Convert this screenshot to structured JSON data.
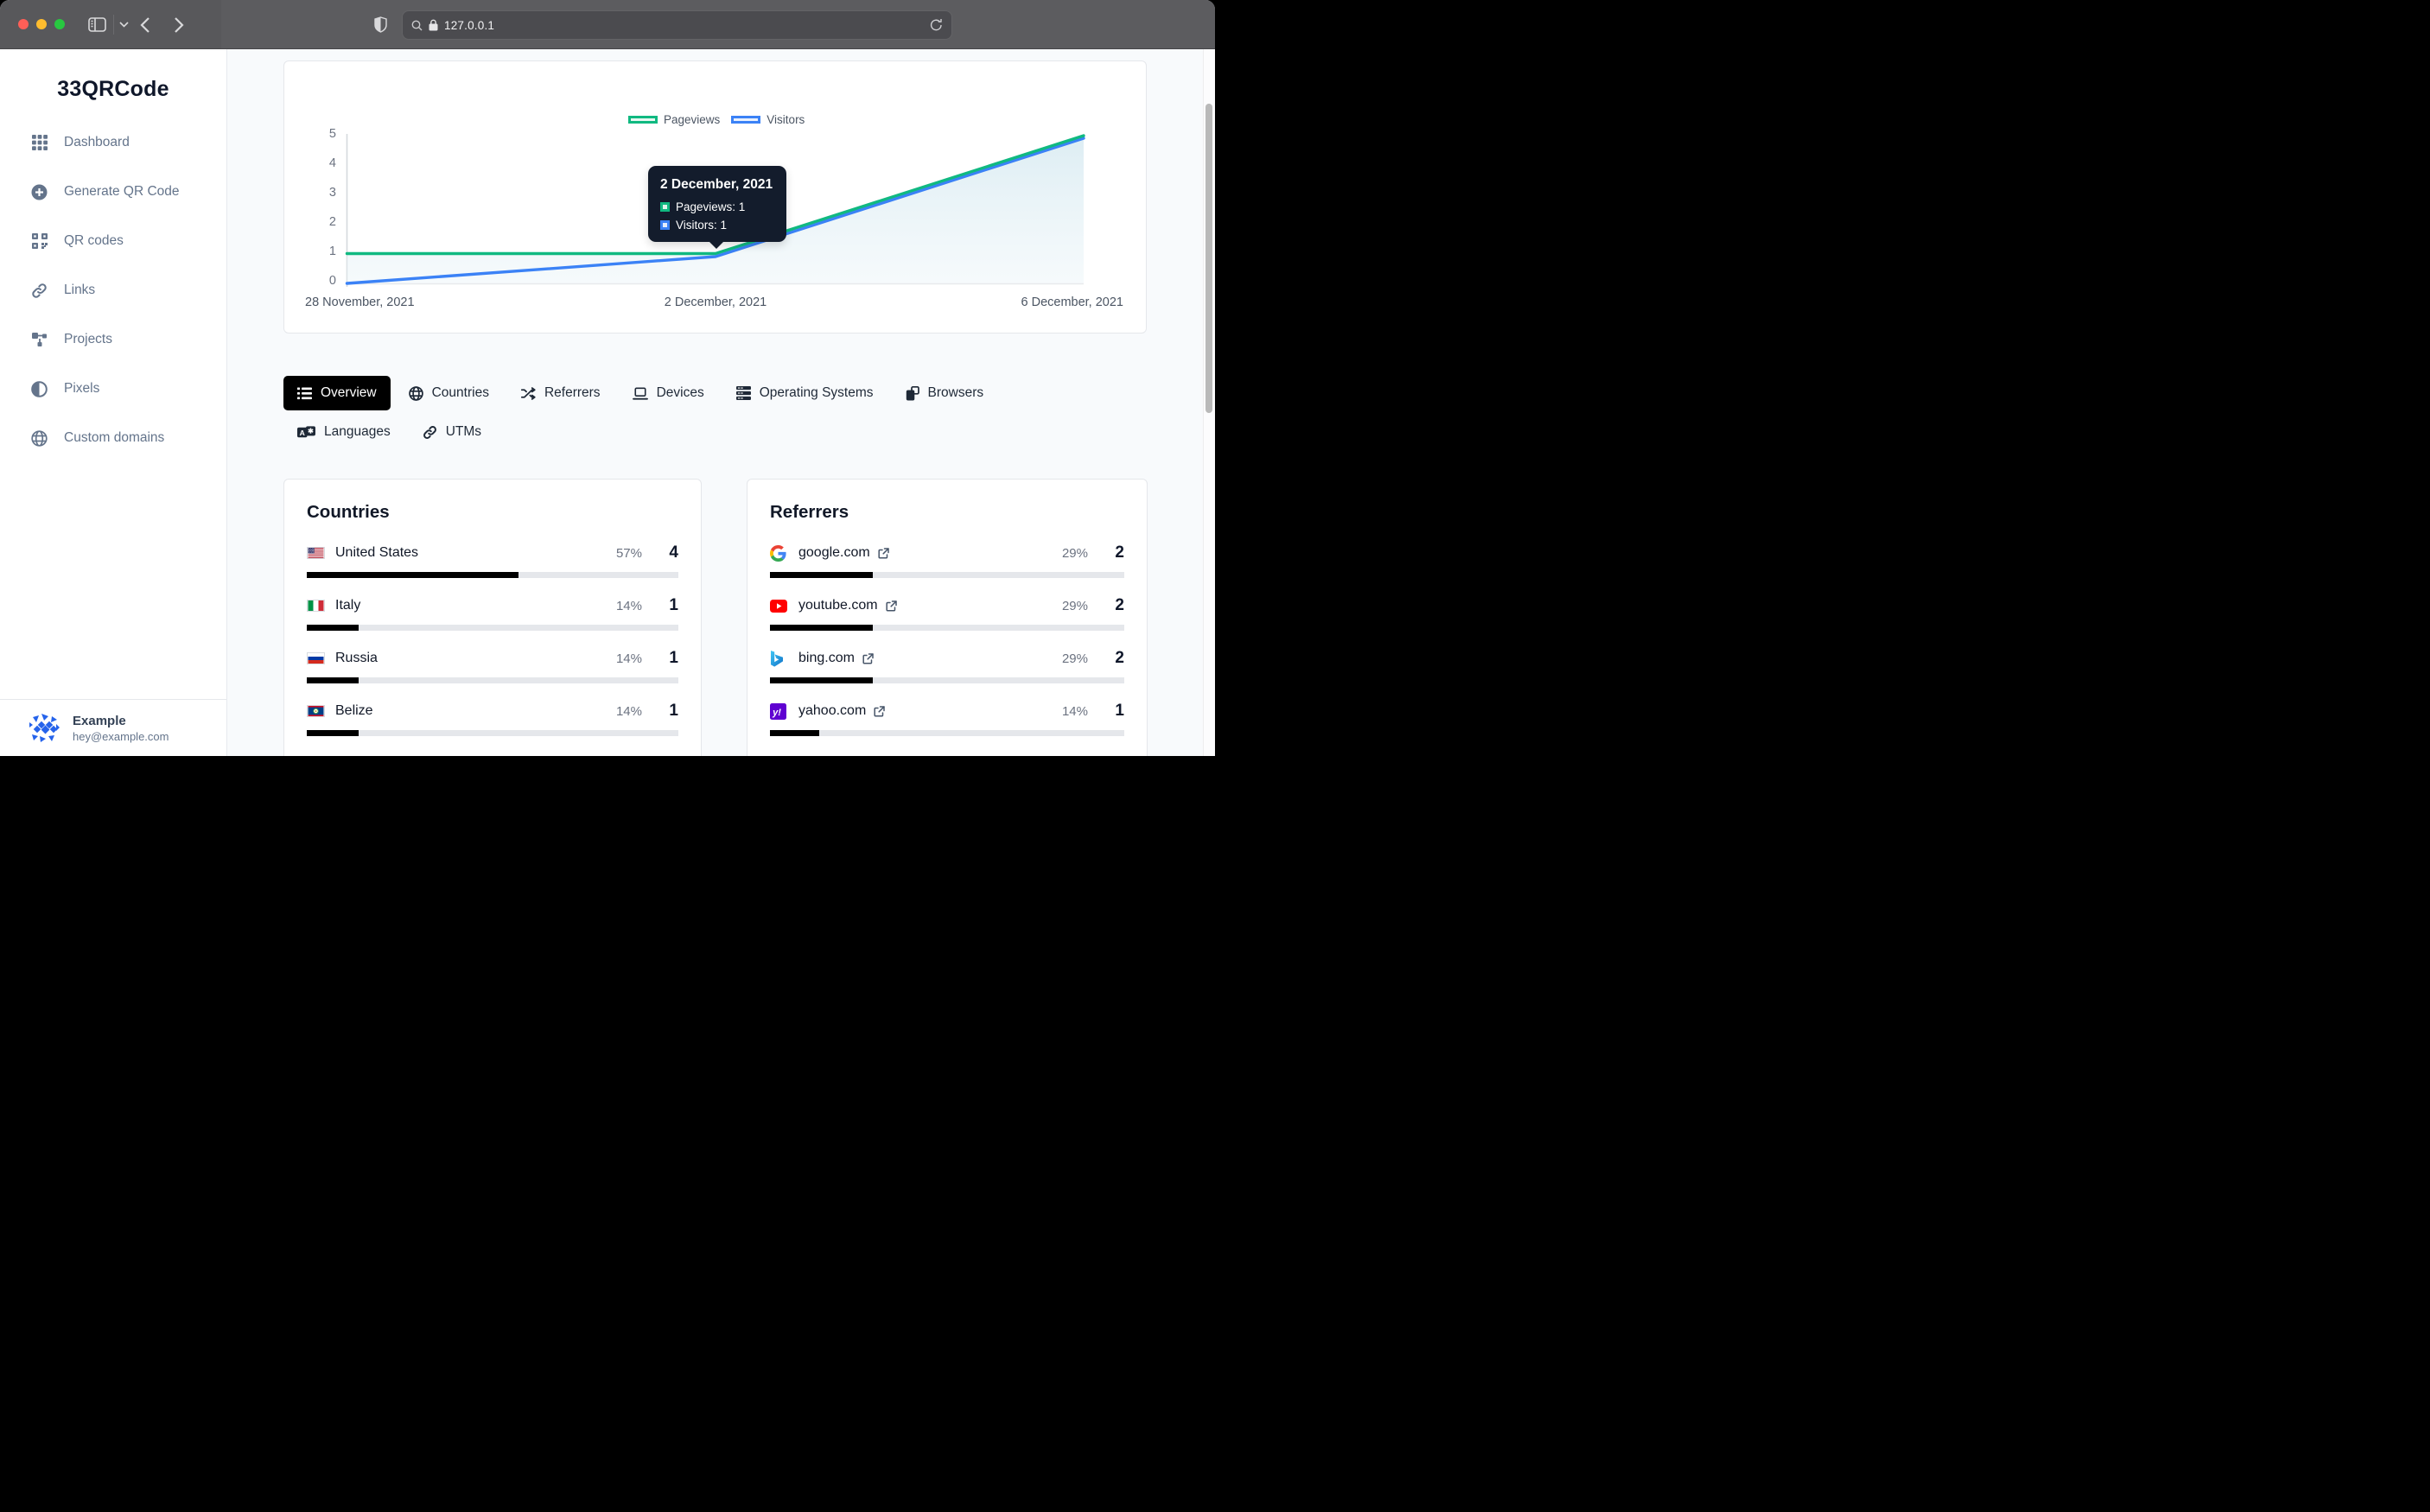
{
  "browser": {
    "url": "127.0.0.1"
  },
  "sidebar": {
    "brand": "33QRCode",
    "items": [
      {
        "label": "Dashboard",
        "icon": "grid-icon"
      },
      {
        "label": "Generate QR Code",
        "icon": "plus-circle-icon"
      },
      {
        "label": "QR codes",
        "icon": "qr-icon"
      },
      {
        "label": "Links",
        "icon": "link-icon"
      },
      {
        "label": "Projects",
        "icon": "sitemap-icon"
      },
      {
        "label": "Pixels",
        "icon": "contrast-icon"
      },
      {
        "label": "Custom domains",
        "icon": "globe-icon"
      }
    ],
    "user": {
      "name": "Example",
      "email": "hey@example.com"
    }
  },
  "chart": {
    "legend": {
      "pageviews": "Pageviews",
      "visitors": "Visitors"
    },
    "y_ticks": [
      "5",
      "4",
      "3",
      "2",
      "1",
      "0"
    ],
    "x_labels": [
      "28 November, 2021",
      "2 December, 2021",
      "6 December, 2021"
    ],
    "tooltip": {
      "title": "2 December, 2021",
      "pageviews": "Pageviews: 1",
      "visitors": "Visitors: 1"
    }
  },
  "chart_data": {
    "type": "area",
    "title": "",
    "x": [
      "28 November, 2021",
      "2 December, 2021",
      "6 December, 2021"
    ],
    "series": [
      {
        "name": "Pageviews",
        "values": [
          1,
          1,
          5
        ],
        "color": "#10b981"
      },
      {
        "name": "Visitors",
        "values": [
          0,
          1,
          5
        ],
        "color": "#3b82f6"
      }
    ],
    "ylim": [
      0,
      5
    ],
    "y_ticks": [
      0,
      1,
      2,
      3,
      4,
      5
    ],
    "grid": false,
    "legend_position": "top",
    "tooltip_point": {
      "x": "2 December, 2021",
      "Pageviews": 1,
      "Visitors": 1
    }
  },
  "tabs": {
    "items": [
      {
        "label": "Overview",
        "active": true
      },
      {
        "label": "Countries",
        "active": false
      },
      {
        "label": "Referrers",
        "active": false
      },
      {
        "label": "Devices",
        "active": false
      },
      {
        "label": "Operating Systems",
        "active": false
      },
      {
        "label": "Browsers",
        "active": false
      },
      {
        "label": "Languages",
        "active": false
      },
      {
        "label": "UTMs",
        "active": false
      }
    ]
  },
  "countries": {
    "title": "Countries",
    "rows": [
      {
        "name": "United States",
        "percent": "57%",
        "count": "4",
        "bar_percent": 57
      },
      {
        "name": "Italy",
        "percent": "14%",
        "count": "1",
        "bar_percent": 14
      },
      {
        "name": "Russia",
        "percent": "14%",
        "count": "1",
        "bar_percent": 14
      },
      {
        "name": "Belize",
        "percent": "14%",
        "count": "1",
        "bar_percent": 14
      }
    ]
  },
  "referrers": {
    "title": "Referrers",
    "rows": [
      {
        "domain": "google.com",
        "percent": "29%",
        "count": "2",
        "bar_percent": 29
      },
      {
        "domain": "youtube.com",
        "percent": "29%",
        "count": "2",
        "bar_percent": 29
      },
      {
        "domain": "bing.com",
        "percent": "29%",
        "count": "2",
        "bar_percent": 29
      },
      {
        "domain": "yahoo.com",
        "percent": "14%",
        "count": "1",
        "bar_percent": 14
      }
    ]
  },
  "colors": {
    "pageviews_green": "#10b981",
    "visitors_blue": "#3b82f6",
    "active_tab_bg": "#000000",
    "bar_fill": "#000000",
    "tooltip_bg": "#131c2c"
  }
}
